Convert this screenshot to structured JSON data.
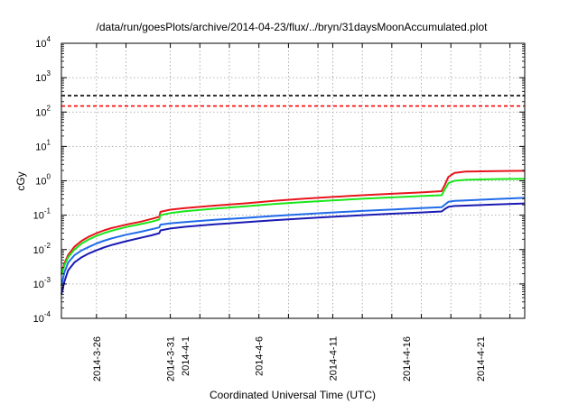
{
  "chart_data": {
    "type": "line",
    "title": "/data/run/goesPlots/archive/2014-04-23/flux/../bryn/31daysMoonAccumulated.plot",
    "xlabel": "Coordinated Universal Time (UTC)",
    "ylabel": "cGy",
    "yscale": "log",
    "ylim": [
      0.0001,
      10000
    ],
    "xlim": [
      "2014-03-23T15:00",
      "2014-04-24T00:00"
    ],
    "grid": true,
    "y_ticks": [
      {
        "base": "10",
        "exp": "-4",
        "value": 0.0001
      },
      {
        "base": "10",
        "exp": "-3",
        "value": 0.001
      },
      {
        "base": "10",
        "exp": "-2",
        "value": 0.01
      },
      {
        "base": "10",
        "exp": "-1",
        "value": 0.1
      },
      {
        "base": "10",
        "exp": "0",
        "value": 1
      },
      {
        "base": "10",
        "exp": "1",
        "value": 10
      },
      {
        "base": "10",
        "exp": "2",
        "value": 100
      },
      {
        "base": "10",
        "exp": "3",
        "value": 1000
      },
      {
        "base": "10",
        "exp": "4",
        "value": 10000
      }
    ],
    "x_tick_labels": [
      {
        "label": "2014-3-26",
        "date": "2014-03-26"
      },
      {
        "label": "2014-3-31",
        "date": "2014-03-31"
      },
      {
        "label": "2014-4-1",
        "date": "2014-04-01"
      },
      {
        "label": "2014-4-6",
        "date": "2014-04-06"
      },
      {
        "label": "2014-4-11",
        "date": "2014-04-11"
      },
      {
        "label": "2014-4-16",
        "date": "2014-04-16"
      },
      {
        "label": "2014-4-21",
        "date": "2014-04-21"
      }
    ],
    "x_grid_dates": [
      "2014-03-26",
      "2014-03-28",
      "2014-03-31",
      "2014-04-02",
      "2014-04-04",
      "2014-04-06",
      "2014-04-08",
      "2014-04-10",
      "2014-04-11",
      "2014-04-13",
      "2014-04-15",
      "2014-04-17",
      "2014-04-19",
      "2014-04-21",
      "2014-04-23"
    ],
    "threshold_lines": [
      {
        "value": 300,
        "color": "#000000",
        "style": "dashed"
      },
      {
        "value": 150,
        "color": "#ff0000",
        "style": "dashed"
      }
    ],
    "series": [
      {
        "color": "#e8141c",
        "points": [
          [
            "2014-03-23T15:00",
            0.002
          ],
          [
            "2014-03-23T20:00",
            0.004
          ],
          [
            "2014-03-24T02:00",
            0.007
          ],
          [
            "2014-03-24T12:00",
            0.012
          ],
          [
            "2014-03-25T00:00",
            0.018
          ],
          [
            "2014-03-25T12:00",
            0.024
          ],
          [
            "2014-03-26T00:00",
            0.03
          ],
          [
            "2014-03-26T12:00",
            0.036
          ],
          [
            "2014-03-27T00:00",
            0.042
          ],
          [
            "2014-03-28T00:00",
            0.053
          ],
          [
            "2014-03-29T00:00",
            0.065
          ],
          [
            "2014-03-29T18:00",
            0.078
          ],
          [
            "2014-03-30T06:00",
            0.09
          ],
          [
            "2014-03-30T08:00",
            0.125
          ],
          [
            "2014-03-31T00:00",
            0.145
          ],
          [
            "2014-04-01T00:00",
            0.16
          ],
          [
            "2014-04-03T00:00",
            0.19
          ],
          [
            "2014-04-05T00:00",
            0.22
          ],
          [
            "2014-04-07T00:00",
            0.26
          ],
          [
            "2014-04-09T00:00",
            0.3
          ],
          [
            "2014-04-11T00:00",
            0.34
          ],
          [
            "2014-04-13T00:00",
            0.38
          ],
          [
            "2014-04-15T00:00",
            0.42
          ],
          [
            "2014-04-17T00:00",
            0.46
          ],
          [
            "2014-04-18T09:00",
            0.5
          ],
          [
            "2014-04-18T14:00",
            0.75
          ],
          [
            "2014-04-18T20:00",
            1.3
          ],
          [
            "2014-04-19T06:00",
            1.7
          ],
          [
            "2014-04-20T00:00",
            1.85
          ],
          [
            "2014-04-22T00:00",
            1.92
          ],
          [
            "2014-04-24T00:00",
            1.95
          ]
        ]
      },
      {
        "color": "#19e619",
        "points": [
          [
            "2014-03-23T15:00",
            0.0018
          ],
          [
            "2014-03-23T20:00",
            0.0035
          ],
          [
            "2014-03-24T02:00",
            0.006
          ],
          [
            "2014-03-24T12:00",
            0.01
          ],
          [
            "2014-03-25T00:00",
            0.015
          ],
          [
            "2014-03-25T12:00",
            0.02
          ],
          [
            "2014-03-26T00:00",
            0.025
          ],
          [
            "2014-03-26T12:00",
            0.03
          ],
          [
            "2014-03-27T00:00",
            0.035
          ],
          [
            "2014-03-28T00:00",
            0.045
          ],
          [
            "2014-03-29T00:00",
            0.055
          ],
          [
            "2014-03-29T18:00",
            0.065
          ],
          [
            "2014-03-30T06:00",
            0.075
          ],
          [
            "2014-03-30T08:00",
            0.1
          ],
          [
            "2014-03-31T00:00",
            0.115
          ],
          [
            "2014-04-01T00:00",
            0.13
          ],
          [
            "2014-04-03T00:00",
            0.155
          ],
          [
            "2014-04-05T00:00",
            0.18
          ],
          [
            "2014-04-07T00:00",
            0.21
          ],
          [
            "2014-04-09T00:00",
            0.24
          ],
          [
            "2014-04-11T00:00",
            0.27
          ],
          [
            "2014-04-13T00:00",
            0.3
          ],
          [
            "2014-04-15T00:00",
            0.33
          ],
          [
            "2014-04-17T00:00",
            0.36
          ],
          [
            "2014-04-18T09:00",
            0.38
          ],
          [
            "2014-04-18T14:00",
            0.55
          ],
          [
            "2014-04-18T20:00",
            0.85
          ],
          [
            "2014-04-19T06:00",
            1.0
          ],
          [
            "2014-04-20T00:00",
            1.07
          ],
          [
            "2014-04-22T00:00",
            1.12
          ],
          [
            "2014-04-24T00:00",
            1.15
          ]
        ]
      },
      {
        "color": "#1f6bea",
        "points": [
          [
            "2014-03-23T15:00",
            0.0009
          ],
          [
            "2014-03-23T20:00",
            0.0022
          ],
          [
            "2014-03-24T02:00",
            0.0042
          ],
          [
            "2014-03-24T12:00",
            0.0068
          ],
          [
            "2014-03-25T00:00",
            0.0095
          ],
          [
            "2014-03-25T12:00",
            0.012
          ],
          [
            "2014-03-26T00:00",
            0.015
          ],
          [
            "2014-03-26T12:00",
            0.018
          ],
          [
            "2014-03-27T00:00",
            0.021
          ],
          [
            "2014-03-28T00:00",
            0.027
          ],
          [
            "2014-03-29T00:00",
            0.033
          ],
          [
            "2014-03-29T18:00",
            0.039
          ],
          [
            "2014-03-30T06:00",
            0.044
          ],
          [
            "2014-03-30T08:00",
            0.053
          ],
          [
            "2014-03-31T00:00",
            0.058
          ],
          [
            "2014-04-01T00:00",
            0.063
          ],
          [
            "2014-04-03T00:00",
            0.073
          ],
          [
            "2014-04-05T00:00",
            0.083
          ],
          [
            "2014-04-07T00:00",
            0.095
          ],
          [
            "2014-04-09T00:00",
            0.107
          ],
          [
            "2014-04-11T00:00",
            0.12
          ],
          [
            "2014-04-13T00:00",
            0.133
          ],
          [
            "2014-04-15T00:00",
            0.146
          ],
          [
            "2014-04-17T00:00",
            0.16
          ],
          [
            "2014-04-18T09:00",
            0.17
          ],
          [
            "2014-04-18T14:00",
            0.2
          ],
          [
            "2014-04-18T20:00",
            0.245
          ],
          [
            "2014-04-19T06:00",
            0.26
          ],
          [
            "2014-04-20T00:00",
            0.27
          ],
          [
            "2014-04-22T00:00",
            0.295
          ],
          [
            "2014-04-24T00:00",
            0.32
          ]
        ]
      },
      {
        "color": "#1a1ab4",
        "points": [
          [
            "2014-03-23T15:00",
            0.0005
          ],
          [
            "2014-03-23T20:00",
            0.0012
          ],
          [
            "2014-03-24T02:00",
            0.0025
          ],
          [
            "2014-03-24T12:00",
            0.0042
          ],
          [
            "2014-03-25T00:00",
            0.006
          ],
          [
            "2014-03-25T12:00",
            0.0078
          ],
          [
            "2014-03-26T00:00",
            0.0095
          ],
          [
            "2014-03-26T12:00",
            0.0115
          ],
          [
            "2014-03-27T00:00",
            0.0135
          ],
          [
            "2014-03-28T00:00",
            0.0175
          ],
          [
            "2014-03-29T00:00",
            0.022
          ],
          [
            "2014-03-29T18:00",
            0.026
          ],
          [
            "2014-03-30T06:00",
            0.03
          ],
          [
            "2014-03-30T08:00",
            0.036
          ],
          [
            "2014-03-31T00:00",
            0.041
          ],
          [
            "2014-04-01T00:00",
            0.046
          ],
          [
            "2014-04-03T00:00",
            0.054
          ],
          [
            "2014-04-05T00:00",
            0.062
          ],
          [
            "2014-04-07T00:00",
            0.071
          ],
          [
            "2014-04-09T00:00",
            0.08
          ],
          [
            "2014-04-11T00:00",
            0.09
          ],
          [
            "2014-04-13T00:00",
            0.1
          ],
          [
            "2014-04-15T00:00",
            0.11
          ],
          [
            "2014-04-17T00:00",
            0.12
          ],
          [
            "2014-04-18T09:00",
            0.128
          ],
          [
            "2014-04-18T14:00",
            0.15
          ],
          [
            "2014-04-18T20:00",
            0.175
          ],
          [
            "2014-04-19T06:00",
            0.185
          ],
          [
            "2014-04-20T00:00",
            0.19
          ],
          [
            "2014-04-22T00:00",
            0.205
          ],
          [
            "2014-04-24T00:00",
            0.22
          ]
        ]
      }
    ]
  }
}
